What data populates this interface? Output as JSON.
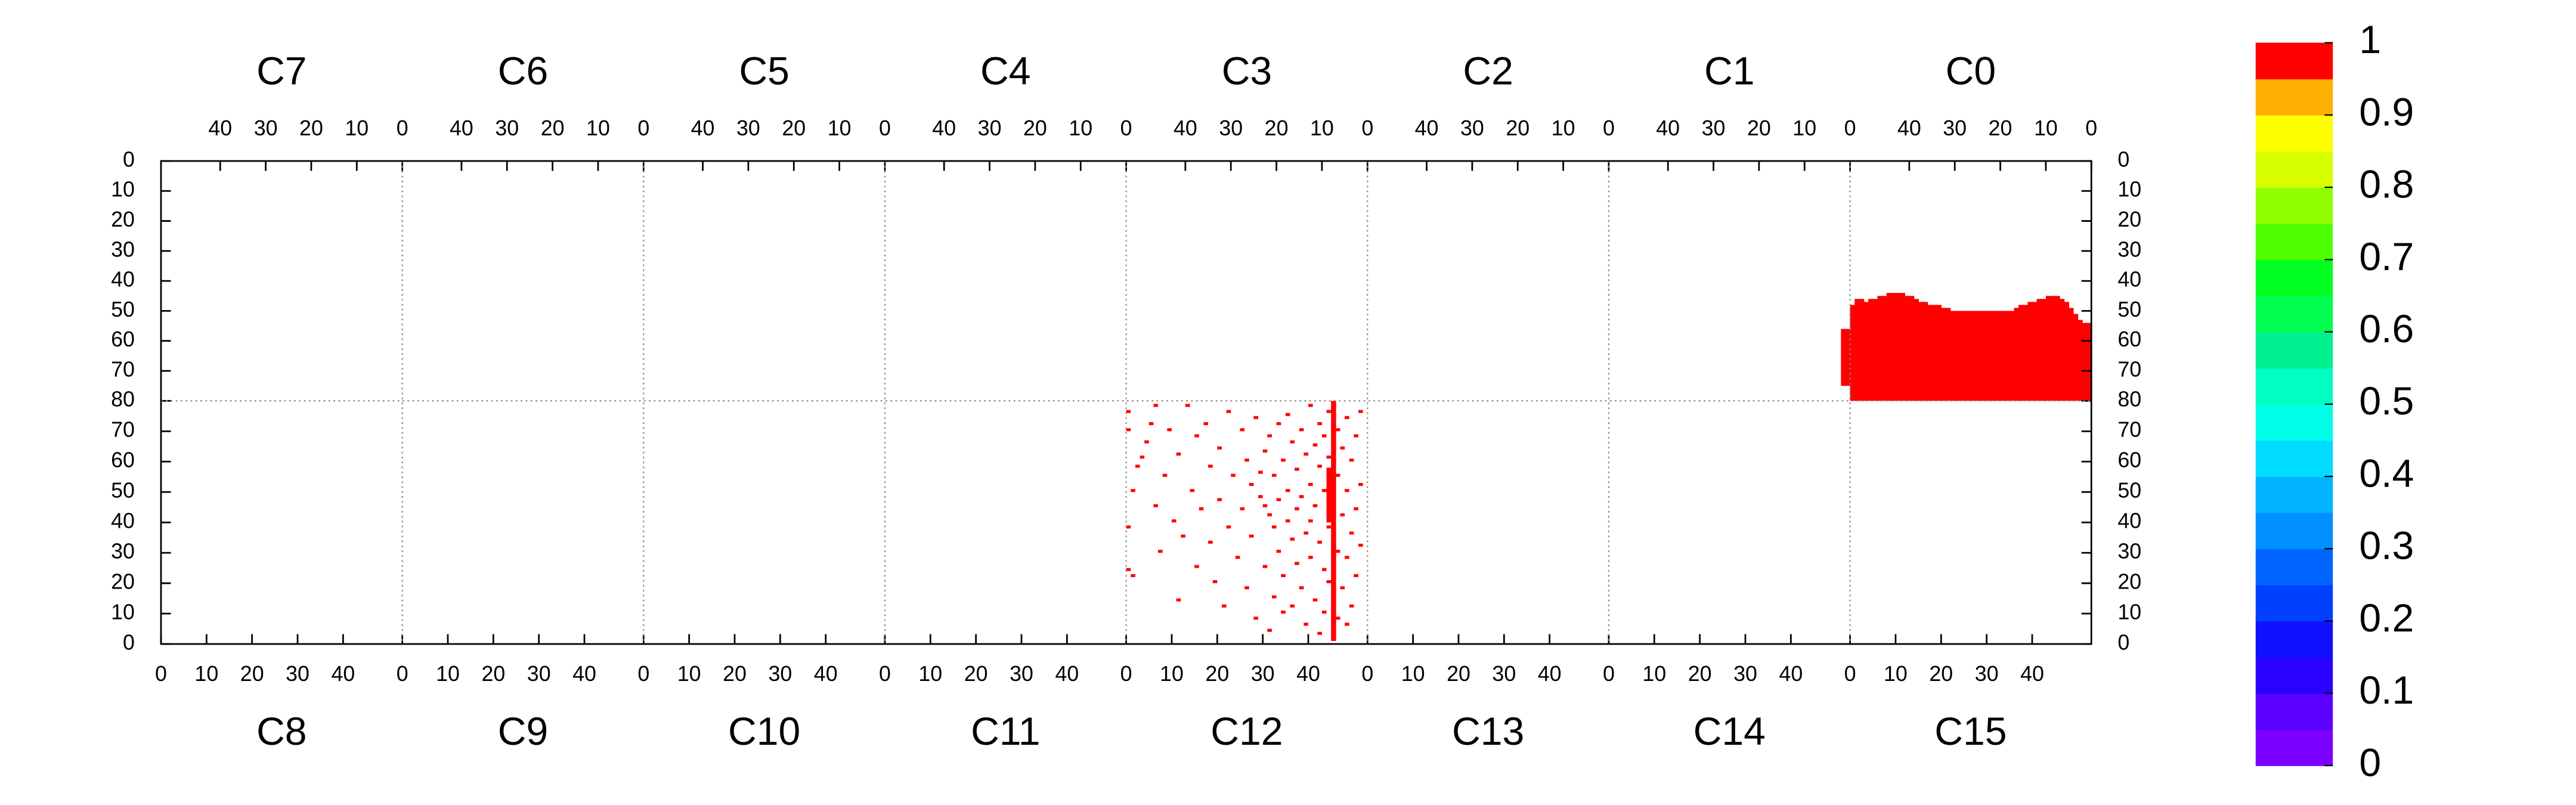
{
  "chart_data": {
    "type": "heatmap",
    "top_axis": {
      "xlim": [
        53,
        0
      ],
      "xticks": [
        40,
        30,
        20,
        10,
        0
      ],
      "ylim": [
        80,
        0
      ],
      "yticks": [
        0,
        10,
        20,
        30,
        40,
        50,
        60,
        70,
        80
      ]
    },
    "bottom_axis": {
      "xlim": [
        0,
        53
      ],
      "xticks": [
        0,
        10,
        20,
        30,
        40
      ],
      "ylim": [
        0,
        80
      ],
      "yticks": [
        0,
        10,
        20,
        30,
        40,
        50,
        60,
        70
      ]
    },
    "top_panels": [
      {
        "name": "C7"
      },
      {
        "name": "C6"
      },
      {
        "name": "C5"
      },
      {
        "name": "C4"
      },
      {
        "name": "C3"
      },
      {
        "name": "C2"
      },
      {
        "name": "C1",
        "segments": [
          [
            0,
            56,
            75,
            1
          ],
          [
            1,
            56,
            75,
            1
          ]
        ]
      },
      {
        "name": "C0",
        "segments": [
          [
            0,
            54,
            80,
            1
          ],
          [
            1,
            54,
            80,
            1
          ],
          [
            2,
            53,
            80,
            1
          ],
          [
            3,
            51,
            80,
            1
          ],
          [
            4,
            49,
            80,
            1
          ],
          [
            5,
            47,
            80,
            1
          ],
          [
            6,
            46,
            80,
            1
          ],
          [
            7,
            45,
            80,
            1
          ],
          [
            8,
            45,
            80,
            1
          ],
          [
            9,
            45,
            80,
            1
          ],
          [
            10,
            46,
            80,
            1
          ],
          [
            11,
            46,
            80,
            1
          ],
          [
            12,
            47,
            80,
            1
          ],
          [
            13,
            47,
            80,
            1
          ],
          [
            14,
            48,
            80,
            1
          ],
          [
            15,
            48,
            80,
            1
          ],
          [
            16,
            49,
            80,
            1
          ],
          [
            17,
            50,
            80,
            1
          ],
          [
            18,
            50,
            80,
            1
          ],
          [
            19,
            50,
            80,
            1
          ],
          [
            20,
            50,
            80,
            1
          ],
          [
            21,
            50,
            80,
            1
          ],
          [
            22,
            50,
            80,
            1
          ],
          [
            23,
            50,
            80,
            1
          ],
          [
            24,
            50,
            80,
            1
          ],
          [
            25,
            50,
            80,
            1
          ],
          [
            26,
            50,
            80,
            1
          ],
          [
            27,
            50,
            80,
            1
          ],
          [
            28,
            50,
            80,
            1
          ],
          [
            29,
            50,
            80,
            1
          ],
          [
            30,
            50,
            80,
            1
          ],
          [
            31,
            49,
            80,
            1
          ],
          [
            32,
            49,
            80,
            1
          ],
          [
            33,
            48,
            80,
            1
          ],
          [
            34,
            48,
            80,
            1
          ],
          [
            35,
            48,
            80,
            1
          ],
          [
            36,
            47,
            80,
            1
          ],
          [
            37,
            47,
            80,
            1
          ],
          [
            38,
            46,
            80,
            1
          ],
          [
            39,
            45,
            80,
            1
          ],
          [
            40,
            45,
            80,
            1
          ],
          [
            41,
            44,
            80,
            1
          ],
          [
            42,
            44,
            80,
            1
          ],
          [
            43,
            44,
            80,
            1
          ],
          [
            44,
            44,
            80,
            1
          ],
          [
            45,
            45,
            80,
            1
          ],
          [
            46,
            45,
            80,
            1
          ],
          [
            47,
            46,
            80,
            1
          ],
          [
            48,
            46,
            80,
            1
          ],
          [
            49,
            47,
            80,
            1
          ],
          [
            50,
            46,
            80,
            1
          ],
          [
            51,
            46,
            80,
            1
          ],
          [
            52,
            48,
            80,
            1
          ]
        ]
      }
    ],
    "bottom_panels": [
      {
        "name": "C8"
      },
      {
        "name": "C9"
      },
      {
        "name": "C10"
      },
      {
        "name": "C11"
      },
      {
        "name": "C12",
        "segments": [
          [
            45,
            1,
            80,
            1
          ],
          [
            44,
            40,
            58,
            1
          ]
        ],
        "points": [
          [
            0,
            76,
            1
          ],
          [
            0,
            70,
            1
          ],
          [
            0,
            38,
            1
          ],
          [
            0,
            24,
            1
          ],
          [
            1,
            22,
            1
          ],
          [
            1,
            50,
            1
          ],
          [
            2,
            58,
            1
          ],
          [
            3,
            61,
            1
          ],
          [
            4,
            66,
            1
          ],
          [
            5,
            72,
            1
          ],
          [
            6,
            45,
            1
          ],
          [
            6,
            78,
            1
          ],
          [
            7,
            30,
            1
          ],
          [
            8,
            55,
            1
          ],
          [
            9,
            70,
            1
          ],
          [
            10,
            40,
            1
          ],
          [
            11,
            62,
            1
          ],
          [
            11,
            14,
            1
          ],
          [
            12,
            35,
            1
          ],
          [
            13,
            78,
            1
          ],
          [
            14,
            50,
            1
          ],
          [
            15,
            25,
            1
          ],
          [
            15,
            68,
            1
          ],
          [
            16,
            44,
            1
          ],
          [
            17,
            72,
            1
          ],
          [
            18,
            58,
            1
          ],
          [
            18,
            33,
            1
          ],
          [
            19,
            20,
            1
          ],
          [
            20,
            64,
            1
          ],
          [
            20,
            47,
            1
          ],
          [
            21,
            12,
            1
          ],
          [
            22,
            76,
            1
          ],
          [
            22,
            38,
            1
          ],
          [
            23,
            55,
            1
          ],
          [
            24,
            28,
            1
          ],
          [
            25,
            70,
            1
          ],
          [
            25,
            44,
            1
          ],
          [
            26,
            60,
            1
          ],
          [
            26,
            18,
            1
          ],
          [
            27,
            52,
            1
          ],
          [
            27,
            35,
            1
          ],
          [
            28,
            74,
            1
          ],
          [
            28,
            8,
            1
          ],
          [
            29,
            48,
            1
          ],
          [
            29,
            56,
            1
          ],
          [
            30,
            45,
            1
          ],
          [
            30,
            63,
            1
          ],
          [
            30,
            25,
            1
          ],
          [
            31,
            42,
            1
          ],
          [
            31,
            68,
            1
          ],
          [
            31,
            4,
            1
          ],
          [
            32,
            55,
            1
          ],
          [
            32,
            38,
            1
          ],
          [
            32,
            15,
            1
          ],
          [
            33,
            47,
            1
          ],
          [
            33,
            72,
            1
          ],
          [
            33,
            30,
            1
          ],
          [
            34,
            60,
            1
          ],
          [
            34,
            22,
            1
          ],
          [
            34,
            10,
            1
          ],
          [
            35,
            50,
            1
          ],
          [
            35,
            40,
            1
          ],
          [
            35,
            75,
            1
          ],
          [
            36,
            66,
            1
          ],
          [
            36,
            34,
            1
          ],
          [
            36,
            12,
            1
          ],
          [
            37,
            44,
            1
          ],
          [
            37,
            57,
            1
          ],
          [
            37,
            26,
            1
          ],
          [
            38,
            70,
            1
          ],
          [
            38,
            48,
            1
          ],
          [
            38,
            18,
            1
          ],
          [
            39,
            62,
            1
          ],
          [
            39,
            36,
            1
          ],
          [
            39,
            6,
            1
          ],
          [
            40,
            52,
            1
          ],
          [
            40,
            40,
            1
          ],
          [
            40,
            78,
            1
          ],
          [
            40,
            28,
            1
          ],
          [
            41,
            65,
            1
          ],
          [
            41,
            45,
            1
          ],
          [
            41,
            14,
            1
          ],
          [
            42,
            58,
            1
          ],
          [
            42,
            33,
            1
          ],
          [
            42,
            72,
            1
          ],
          [
            42,
            3,
            1
          ],
          [
            43,
            50,
            1
          ],
          [
            43,
            24,
            1
          ],
          [
            43,
            68,
            1
          ],
          [
            43,
            10,
            1
          ],
          [
            44,
            61,
            1
          ],
          [
            44,
            38,
            1
          ],
          [
            44,
            76,
            1
          ],
          [
            44,
            20,
            1
          ],
          [
            46,
            55,
            1
          ],
          [
            46,
            30,
            1
          ],
          [
            46,
            70,
            1
          ],
          [
            46,
            8,
            1
          ],
          [
            47,
            64,
            1
          ],
          [
            47,
            42,
            1
          ],
          [
            47,
            18,
            1
          ],
          [
            48,
            50,
            1
          ],
          [
            48,
            74,
            1
          ],
          [
            48,
            28,
            1
          ],
          [
            48,
            6,
            1
          ],
          [
            49,
            60,
            1
          ],
          [
            49,
            36,
            1
          ],
          [
            49,
            12,
            1
          ],
          [
            50,
            68,
            1
          ],
          [
            50,
            44,
            1
          ],
          [
            50,
            22,
            1
          ],
          [
            51,
            76,
            1
          ],
          [
            51,
            52,
            1
          ],
          [
            51,
            32,
            1
          ]
        ]
      },
      {
        "name": "C13"
      },
      {
        "name": "C14"
      },
      {
        "name": "C15"
      }
    ],
    "zlim": [
      0,
      1
    ],
    "zticks": [
      0,
      0.1,
      0.2,
      0.3,
      0.4,
      0.5,
      0.6,
      0.7,
      0.8,
      0.9,
      1
    ],
    "colorscale": [
      "#7a00ff",
      "#5a00ff",
      "#2a00ff",
      "#1010ff",
      "#0040ff",
      "#0064ff",
      "#0090ff",
      "#00b4ff",
      "#00dcff",
      "#00ffe8",
      "#00ffc0",
      "#00f090",
      "#00ff50",
      "#00ff20",
      "#50ff00",
      "#90ff00",
      "#d8ff00",
      "#ffff00",
      "#ffb000",
      "#ff0000"
    ],
    "grid": true
  }
}
